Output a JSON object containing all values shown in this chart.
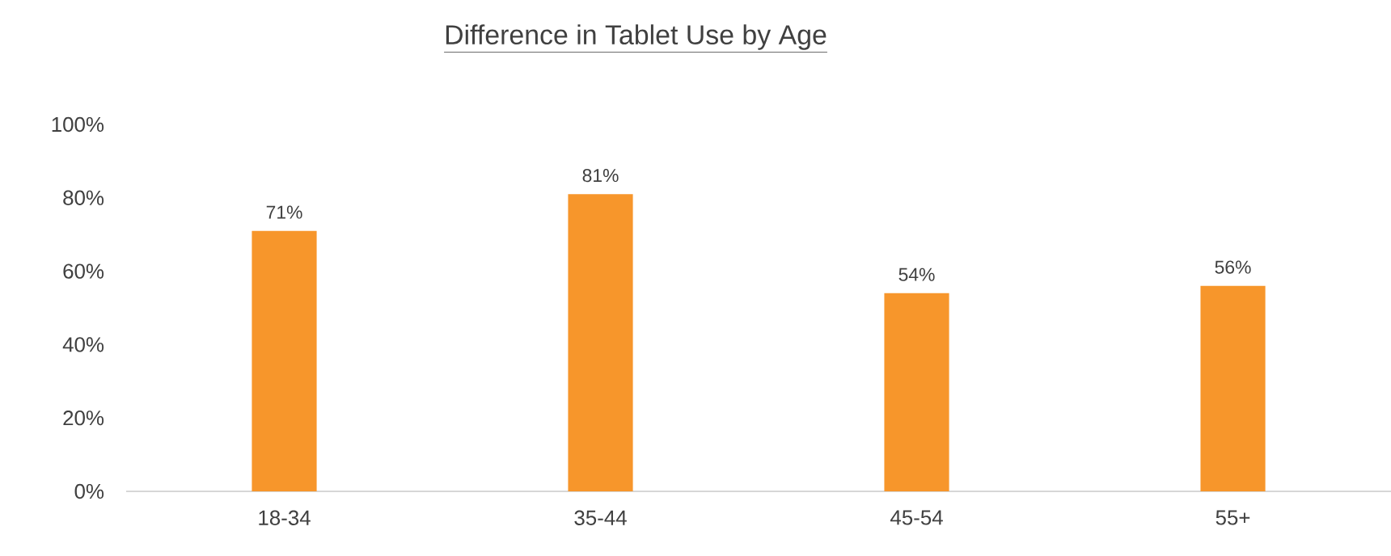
{
  "chart_data": {
    "type": "bar",
    "title": "Difference in Tablet Use by Age",
    "categories": [
      "18-34",
      "35-44",
      "45-54",
      "55+"
    ],
    "values": [
      71,
      81,
      54,
      56
    ],
    "value_labels": [
      "71%",
      "81%",
      "54%",
      "56%"
    ],
    "color": "#f7962b",
    "ylim": [
      0,
      100
    ],
    "yticks": [
      {
        "value": 0,
        "label": "0%"
      },
      {
        "value": 20,
        "label": "20%"
      },
      {
        "value": 40,
        "label": "40%"
      },
      {
        "value": 60,
        "label": "60%"
      },
      {
        "value": 80,
        "label": "80%"
      },
      {
        "value": 100,
        "label": "100%"
      }
    ]
  }
}
